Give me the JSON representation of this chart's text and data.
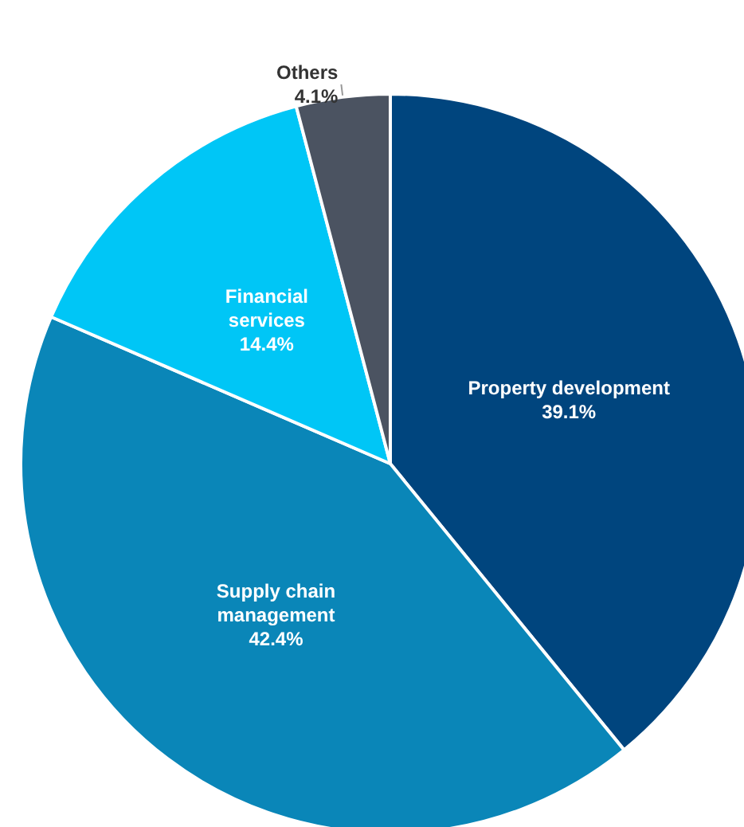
{
  "chart_data": {
    "type": "pie",
    "categories": [
      "Property development",
      "Supply chain\nmanagement",
      "Financial\nservices",
      "Others"
    ],
    "values": [
      39.1,
      42.4,
      14.4,
      4.1
    ],
    "value_labels": [
      "39.1%",
      "42.4%",
      "14.4%",
      "4.1%"
    ],
    "colors": [
      "#00457e",
      "#0a86b8",
      "#00c6f6",
      "#4b5361"
    ],
    "legend": false
  }
}
